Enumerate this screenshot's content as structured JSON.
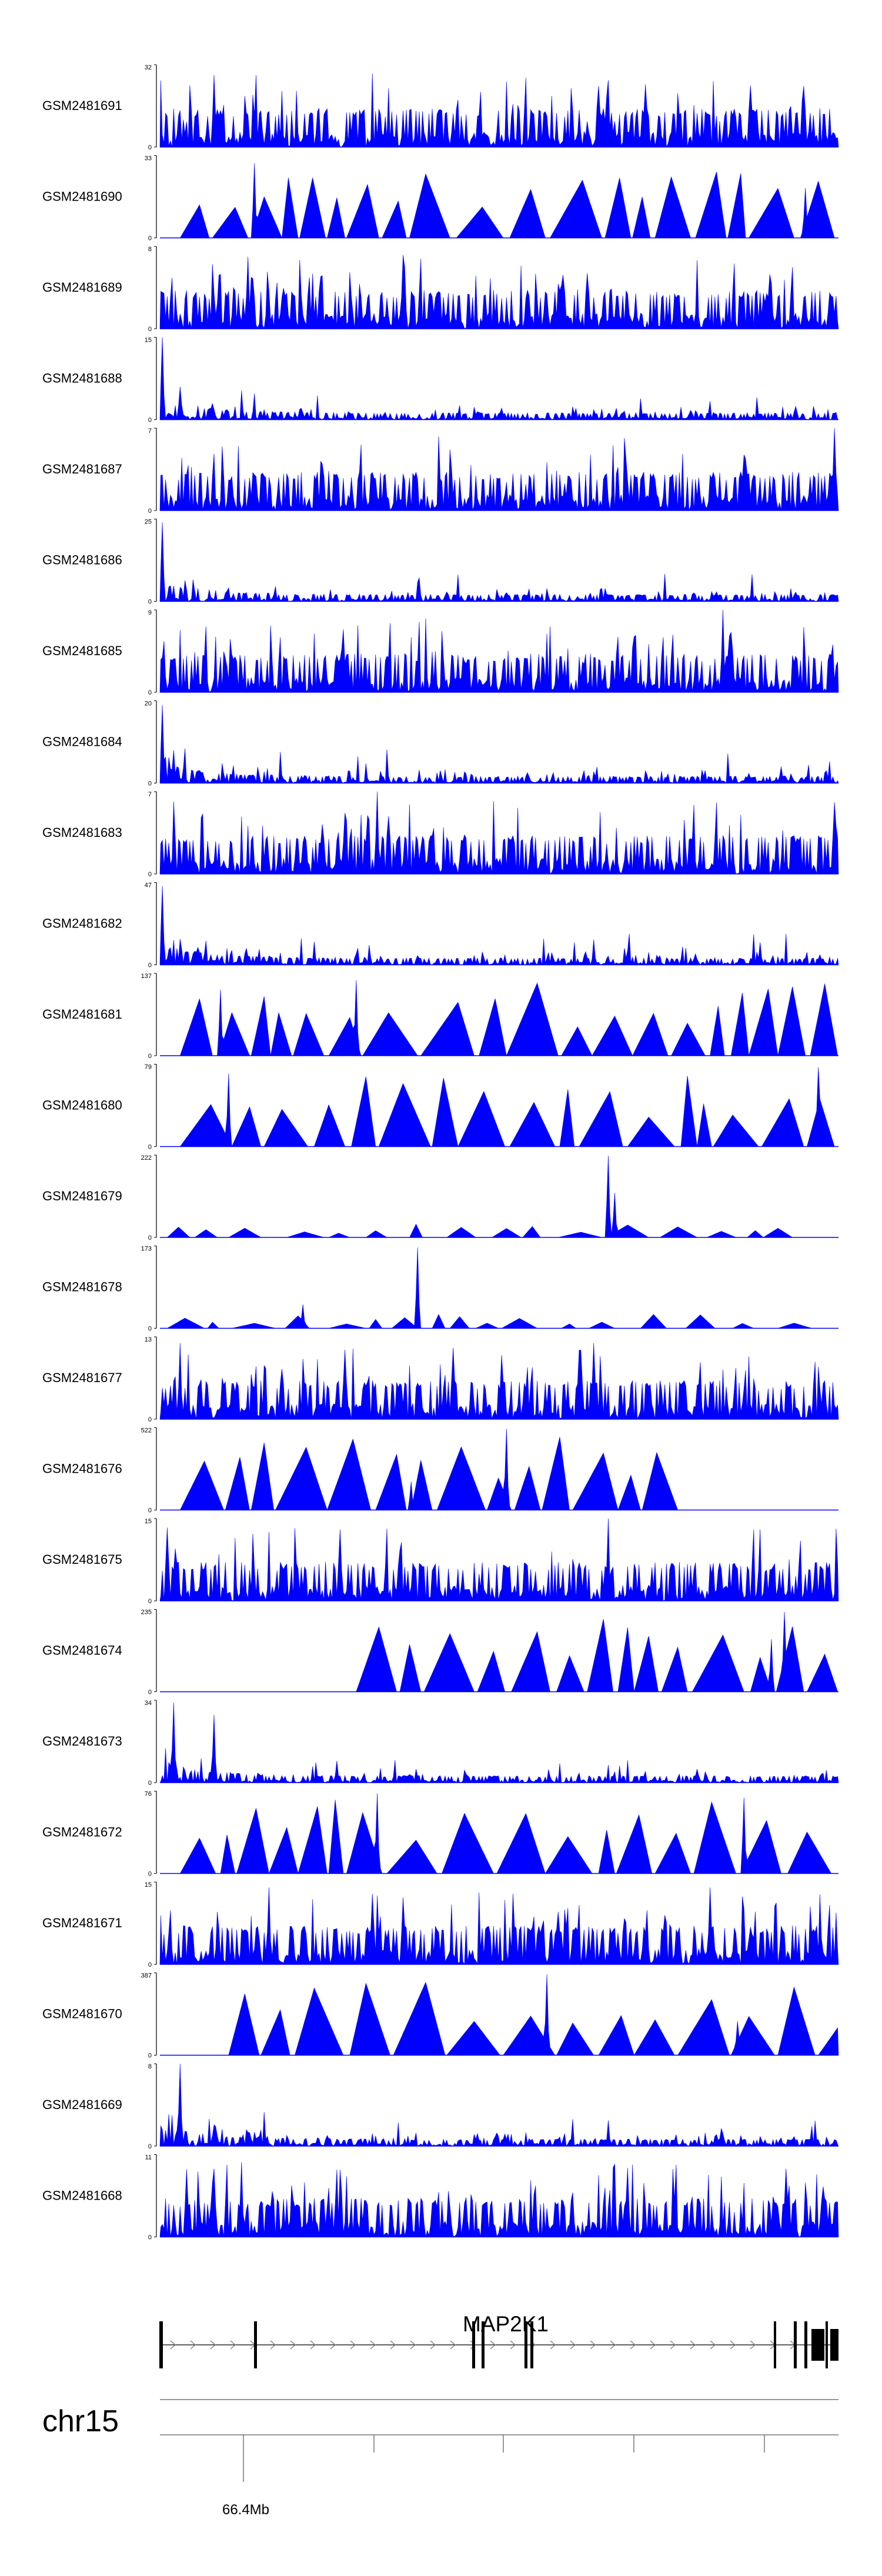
{
  "chart_data": {
    "type": "area",
    "title": "",
    "track_color": "#0000ff",
    "gene_color": "#000000",
    "axis_color": "#777777",
    "tracks": [
      {
        "name": "GSM2481691",
        "ymax": 32,
        "ymin": 0,
        "style": "dense",
        "seed": 11,
        "peaks": [
          [
            0.08,
            28
          ],
          [
            0.07,
            12
          ],
          [
            0.03,
            9
          ],
          [
            0.66,
            26
          ],
          [
            0.67,
            10
          ]
        ]
      },
      {
        "name": "GSM2481690",
        "ymax": 33,
        "ymin": 0,
        "style": "tri",
        "seed": 12,
        "ends": [
          0.97
        ],
        "peaks": [
          [
            0.14,
            30
          ],
          [
            0.95,
            20
          ]
        ]
      },
      {
        "name": "GSM2481689",
        "ymax": 8,
        "ymin": 0,
        "style": "dense",
        "seed": 13,
        "peaks": [
          [
            0.13,
            7
          ],
          [
            0.36,
            6
          ]
        ]
      },
      {
        "name": "GSM2481688",
        "ymax": 15,
        "ymin": 0,
        "style": "decay",
        "seed": 14,
        "peaks": [
          [
            0.003,
            15
          ],
          [
            0.03,
            6
          ]
        ]
      },
      {
        "name": "GSM2481687",
        "ymax": 7,
        "ymin": 0,
        "style": "dense",
        "seed": 15,
        "peaks": [
          [
            0.995,
            7
          ]
        ]
      },
      {
        "name": "GSM2481686",
        "ymax": 25,
        "ymin": 0,
        "style": "decay",
        "seed": 16,
        "peaks": [
          [
            0.003,
            24
          ]
        ]
      },
      {
        "name": "GSM2481685",
        "ymax": 9,
        "ymin": 0,
        "style": "dense",
        "seed": 17,
        "peaks": [
          [
            0.83,
            9
          ]
        ]
      },
      {
        "name": "GSM2481684",
        "ymax": 20,
        "ymin": 0,
        "style": "decay",
        "seed": 18,
        "peaks": [
          [
            0.004,
            19
          ],
          [
            0.02,
            8
          ]
        ]
      },
      {
        "name": "GSM2481683",
        "ymax": 7,
        "ymin": 0,
        "style": "dense",
        "seed": 19,
        "peaks": [
          [
            0.32,
            7
          ]
        ]
      },
      {
        "name": "GSM2481682",
        "ymax": 47,
        "ymin": 0,
        "style": "decay",
        "seed": 20,
        "peaks": [
          [
            0.003,
            45
          ],
          [
            0.66,
            5
          ]
        ]
      },
      {
        "name": "GSM2481681",
        "ymax": 137,
        "ymin": 0,
        "style": "tri",
        "seed": 21,
        "ends": [
          0.99
        ],
        "peaks": [
          [
            0.29,
            126
          ],
          [
            0.09,
            110
          ]
        ]
      },
      {
        "name": "GSM2481680",
        "ymax": 79,
        "ymin": 0,
        "style": "tri",
        "seed": 22,
        "ends": [
          0.98
        ],
        "peaks": [
          [
            0.1,
            70
          ],
          [
            0.97,
            76
          ]
        ]
      },
      {
        "name": "GSM2481679",
        "ymax": 222,
        "ymin": 0,
        "style": "sparse",
        "seed": 23,
        "ends": [
          0.9
        ],
        "peaks": [
          [
            0.66,
            220
          ],
          [
            0.67,
            120
          ]
        ]
      },
      {
        "name": "GSM2481678",
        "ymax": 173,
        "ymin": 0,
        "style": "sparse",
        "seed": 24,
        "ends": [
          0.93
        ],
        "peaks": [
          [
            0.38,
            170
          ],
          [
            0.21,
            50
          ]
        ]
      },
      {
        "name": "GSM2481677",
        "ymax": 13,
        "ymin": 0,
        "style": "dense",
        "seed": 25,
        "peaks": [
          [
            0.03,
            12
          ],
          [
            0.64,
            12
          ]
        ]
      },
      {
        "name": "GSM2481676",
        "ymax": 522,
        "ymin": 0,
        "style": "tri",
        "seed": 26,
        "ends": [
          0.76
        ],
        "peaks": [
          [
            0.51,
            515
          ],
          [
            0.37,
            180
          ]
        ]
      },
      {
        "name": "GSM2481675",
        "ymax": 15,
        "ymin": 0,
        "style": "dense",
        "seed": 27,
        "peaks": [
          [
            0.66,
            15
          ]
        ]
      },
      {
        "name": "GSM2481674",
        "ymax": 235,
        "ymin": 0,
        "style": "tri",
        "seed": 28,
        "ends": [
          0.96
        ],
        "starts": [
          0.29
        ],
        "peaks": [
          [
            0.92,
            228
          ],
          [
            0.9,
            150
          ]
        ]
      },
      {
        "name": "GSM2481673",
        "ymax": 34,
        "ymin": 0,
        "style": "decay",
        "seed": 29,
        "peaks": [
          [
            0.02,
            33
          ],
          [
            0.08,
            28
          ]
        ]
      },
      {
        "name": "GSM2481672",
        "ymax": 76,
        "ymin": 0,
        "style": "tri",
        "seed": 30,
        "ends": [
          0.97
        ],
        "peaks": [
          [
            0.32,
            74
          ],
          [
            0.86,
            70
          ]
        ]
      },
      {
        "name": "GSM2481671",
        "ymax": 15,
        "ymin": 0,
        "style": "dense",
        "seed": 31,
        "peaks": [
          [
            0.16,
            14
          ],
          [
            0.81,
            14
          ]
        ]
      },
      {
        "name": "GSM2481670",
        "ymax": 387,
        "ymin": 0,
        "style": "tri",
        "seed": 32,
        "ends": [
          0.98
        ],
        "starts": [
          0.1
        ],
        "peaks": [
          [
            0.57,
            380
          ],
          [
            0.85,
            160
          ]
        ]
      },
      {
        "name": "GSM2481669",
        "ymax": 8,
        "ymin": 0,
        "style": "decay",
        "seed": 33,
        "peaks": [
          [
            0.03,
            8
          ]
        ]
      },
      {
        "name": "GSM2481668",
        "ymax": 11,
        "ymin": 0,
        "style": "dense",
        "seed": 34,
        "peaks": [
          [
            0.12,
            10
          ],
          [
            0.26,
            9
          ]
        ]
      }
    ],
    "gene": {
      "name": "MAP2K1",
      "strand": "+"
    },
    "chromosome": "chr15",
    "axis": {
      "tick_label": "66.4Mb",
      "tick_count": 6
    }
  }
}
